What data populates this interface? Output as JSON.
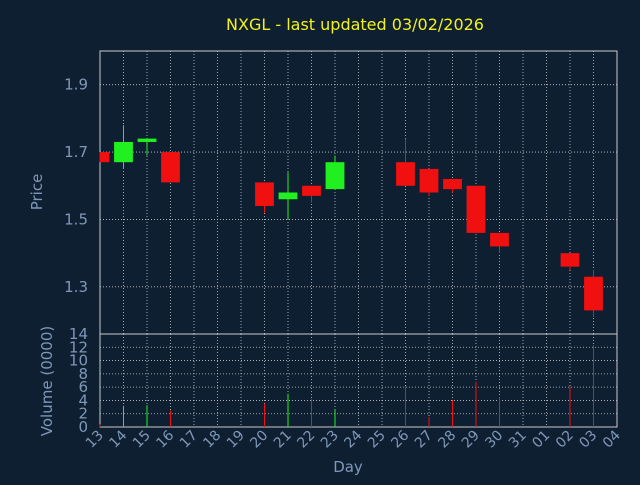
{
  "colors": {
    "background": "#0f1f32",
    "frame": "#c8c8c8",
    "grid": "#c8c8c8",
    "axis_text": "#7f98b8",
    "title": "#f2f21a",
    "up": "#20f020",
    "down": "#f01010"
  },
  "chart_data": [
    {
      "type": "candlestick",
      "title": "NXGL - last updated 03/02/2026",
      "ylabel": "Price",
      "ylim": [
        1.16,
        2.0
      ],
      "yticks": [
        "1.3",
        "1.5",
        "1.7",
        "1.9"
      ],
      "grid": true,
      "candles": [
        {
          "day": "13",
          "open": 1.7,
          "high": 1.7,
          "low": 1.67,
          "close": 1.67
        },
        {
          "day": "14",
          "open": 1.67,
          "high": 1.78,
          "low": 1.65,
          "close": 1.73
        },
        {
          "day": "15",
          "open": 1.73,
          "high": 1.74,
          "low": 1.69,
          "close": 1.74
        },
        {
          "day": "16",
          "open": 1.7,
          "high": 1.7,
          "low": 1.61,
          "close": 1.61
        },
        {
          "day": "20",
          "open": 1.61,
          "high": 1.61,
          "low": 1.52,
          "close": 1.54
        },
        {
          "day": "21",
          "open": 1.56,
          "high": 1.64,
          "low": 1.5,
          "close": 1.58
        },
        {
          "day": "22",
          "open": 1.6,
          "high": 1.6,
          "low": 1.55,
          "close": 1.57
        },
        {
          "day": "23",
          "open": 1.59,
          "high": 1.69,
          "low": 1.59,
          "close": 1.67
        },
        {
          "day": "26",
          "open": 1.67,
          "high": 1.74,
          "low": 1.6,
          "close": 1.6
        },
        {
          "day": "27",
          "open": 1.65,
          "high": 1.65,
          "low": 1.57,
          "close": 1.58
        },
        {
          "day": "28",
          "open": 1.62,
          "high": 1.62,
          "low": 1.58,
          "close": 1.59
        },
        {
          "day": "29",
          "open": 1.6,
          "high": 1.6,
          "low": 1.46,
          "close": 1.46
        },
        {
          "day": "30",
          "open": 1.46,
          "high": 1.46,
          "low": 1.4,
          "close": 1.42
        },
        {
          "day": "02",
          "open": 1.4,
          "high": 1.4,
          "low": 1.35,
          "close": 1.36
        },
        {
          "day": "03",
          "open": 1.33,
          "high": 1.35,
          "low": 1.21,
          "close": 1.23
        }
      ]
    },
    {
      "type": "bar",
      "xlabel": "Day",
      "ylabel": "Volume (0000)",
      "ylim": [
        0,
        14
      ],
      "yticks": [
        "0",
        "2",
        "4",
        "6",
        "8",
        "10",
        "12",
        "14"
      ],
      "categories": [
        "13",
        "14",
        "15",
        "16",
        "17",
        "18",
        "19",
        "20",
        "21",
        "22",
        "23",
        "24",
        "25",
        "26",
        "27",
        "28",
        "29",
        "30",
        "31",
        "01",
        "02",
        "03",
        "04"
      ],
      "volumes": [
        {
          "day": "13",
          "value": 0.4,
          "dir": "down"
        },
        {
          "day": "14",
          "value": 3.2,
          "dir": "up"
        },
        {
          "day": "15",
          "value": 3.3,
          "dir": "up"
        },
        {
          "day": "16",
          "value": 2.5,
          "dir": "down"
        },
        {
          "day": "20",
          "value": 3.5,
          "dir": "down"
        },
        {
          "day": "21",
          "value": 5.0,
          "dir": "up"
        },
        {
          "day": "22",
          "value": 4.2,
          "dir": "down"
        },
        {
          "day": "23",
          "value": 2.6,
          "dir": "up"
        },
        {
          "day": "26",
          "value": 6.1,
          "dir": "down"
        },
        {
          "day": "27",
          "value": 1.5,
          "dir": "down"
        },
        {
          "day": "28",
          "value": 4.0,
          "dir": "down"
        },
        {
          "day": "29",
          "value": 6.8,
          "dir": "down"
        },
        {
          "day": "30",
          "value": 4.5,
          "dir": "down"
        },
        {
          "day": "02",
          "value": 6.1,
          "dir": "down"
        },
        {
          "day": "03",
          "value": 12.3,
          "dir": "down"
        }
      ]
    }
  ]
}
